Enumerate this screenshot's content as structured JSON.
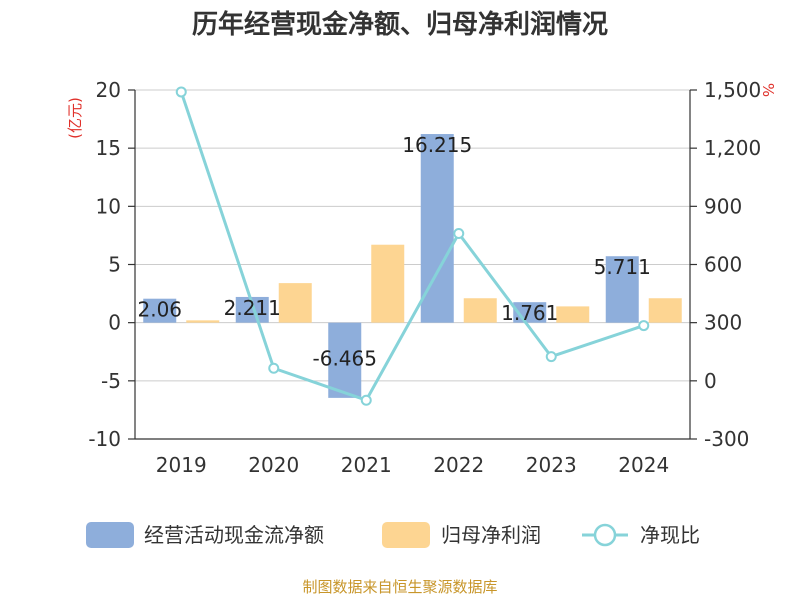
{
  "chart_data": {
    "type": "bar",
    "title": "历年经营现金净额、归母净利润情况",
    "categories": [
      "2019",
      "2020",
      "2021",
      "2022",
      "2023",
      "2024"
    ],
    "series": [
      {
        "name": "经营活动现金流净额",
        "type": "bar",
        "axis": "left",
        "color": "#8eaedb",
        "values": [
          2.06,
          2.211,
          -6.465,
          16.215,
          1.761,
          5.711
        ],
        "labels": [
          "2.06",
          "2.211",
          "-6.465",
          "16.215",
          "1.761",
          "5.711"
        ]
      },
      {
        "name": "归母净利润",
        "type": "bar",
        "axis": "left",
        "color": "#fdd592",
        "values": [
          0.2,
          3.4,
          6.7,
          2.1,
          1.4,
          2.1
        ]
      },
      {
        "name": "净现比",
        "type": "line",
        "axis": "right",
        "color": "#86d3d9",
        "values": [
          1490,
          65,
          -100,
          760,
          125,
          285
        ]
      }
    ],
    "y_left": {
      "unit": "(亿元)",
      "ylim": [
        -10,
        20
      ],
      "ticks": [
        {
          "v": 20,
          "t": "20"
        },
        {
          "v": 15,
          "t": "15"
        },
        {
          "v": 10,
          "t": "10"
        },
        {
          "v": 5,
          "t": "5"
        },
        {
          "v": 0,
          "t": "0"
        },
        {
          "v": -5,
          "t": "-5"
        },
        {
          "v": -10,
          "t": "-10"
        }
      ]
    },
    "y_right": {
      "unit": "%",
      "ylim": [
        -300,
        1500
      ],
      "ticks": [
        {
          "v": 1500,
          "t": "1,500"
        },
        {
          "v": 1200,
          "t": "1,200"
        },
        {
          "v": 900,
          "t": "900"
        },
        {
          "v": 600,
          "t": "600"
        },
        {
          "v": 300,
          "t": "300"
        },
        {
          "v": 0,
          "t": "0"
        },
        {
          "v": -300,
          "t": "-300"
        }
      ]
    },
    "legend": [
      "经营活动现金流净额",
      "归母净利润",
      "净现比"
    ],
    "legend_position": "bottom",
    "source": "制图数据来自恒生聚源数据库"
  }
}
